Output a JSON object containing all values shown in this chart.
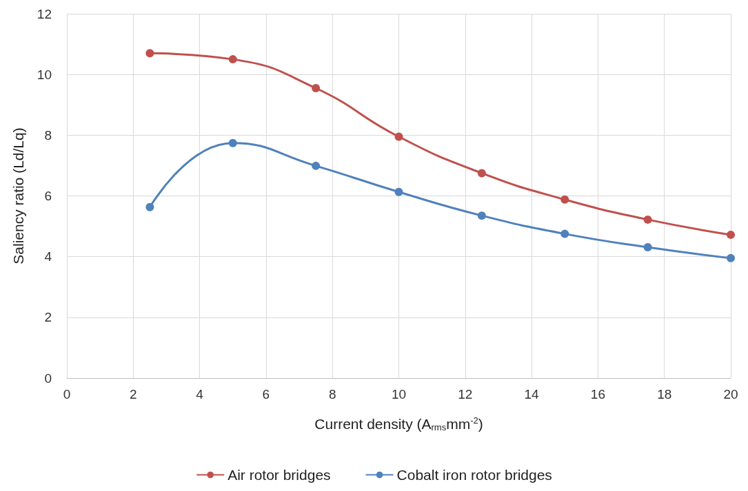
{
  "chart_data": {
    "type": "line",
    "xlabel": "Current density (A$_{rms}$mm$^{-2}$)",
    "ylabel": "Saliency ratio (Ld/Lq)",
    "xlim": [
      0,
      20
    ],
    "xticks": [
      0,
      2,
      4,
      6,
      8,
      10,
      12,
      14,
      16,
      18,
      20
    ],
    "ylim": [
      0,
      12
    ],
    "yticks": [
      0,
      2,
      4,
      6,
      8,
      10,
      12
    ],
    "x": [
      2.5,
      5,
      7.5,
      10,
      12.5,
      15,
      17.5,
      20
    ],
    "series": [
      {
        "name": "Air rotor bridges",
        "color": "#c0504d",
        "values": [
          10.7,
          10.5,
          9.55,
          7.95,
          6.75,
          5.88,
          5.22,
          4.72
        ]
      },
      {
        "name": "Cobalt iron rotor bridges",
        "color": "#4f81bd",
        "values": [
          5.63,
          7.74,
          6.99,
          6.13,
          5.35,
          4.75,
          4.31,
          3.95
        ]
      }
    ],
    "grid": true,
    "legend": "bottom",
    "marker": "circle",
    "line_style": "solid"
  }
}
